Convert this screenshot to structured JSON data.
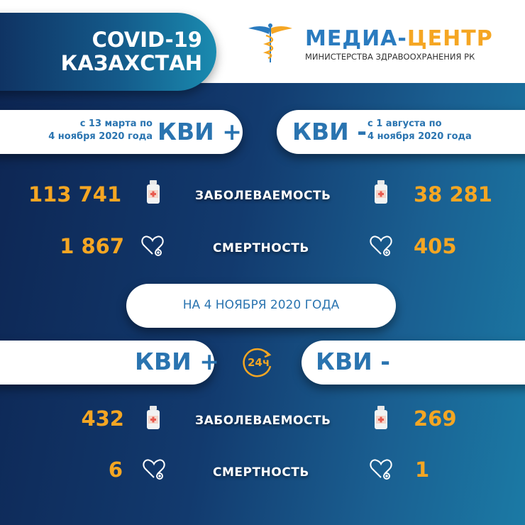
{
  "header": {
    "title_line1": "COVID-19",
    "title_line2": "КАЗАХСТАН",
    "logo_name_blue": "МЕДИА-",
    "logo_name_orange": "ЦЕНТР",
    "logo_subtitle": "МИНИСТЕРСТВА ЗДРАВООХРАНЕНИЯ РК"
  },
  "cumulative": {
    "positive": {
      "badge": "КВИ +",
      "period_line1": "с 13 марта по",
      "period_line2": "4 ноября 2020 года",
      "cases": "113 741",
      "deaths": "1 867"
    },
    "negative": {
      "badge": "КВИ -",
      "period_line1": "с 1 августа  по",
      "period_line2": "4 ноября 2020 года",
      "cases": "38 281",
      "deaths": "405"
    },
    "labels": {
      "cases": "ЗАБОЛЕВАЕМОСТЬ",
      "deaths": "СМЕРТНОСТЬ"
    }
  },
  "daily": {
    "date_banner": "НА  4 НОЯБРЯ  2020 ГОДА",
    "badge_24h": "24ч",
    "positive": {
      "badge": "КВИ +",
      "cases": "432",
      "deaths": "6"
    },
    "negative": {
      "badge": "КВИ -",
      "cases": "269",
      "deaths": "1"
    },
    "labels": {
      "cases": "ЗАБОЛЕВАЕМОСТЬ",
      "deaths": "СМЕРТНОСТЬ"
    }
  },
  "colors": {
    "accent_orange": "#f5a623",
    "brand_blue": "#2a74b0",
    "background_navy": "#0d2552"
  },
  "icons": [
    "caduceus-icon",
    "medicine-bottle-icon",
    "heart-plus-icon",
    "clock-24h-icon"
  ]
}
